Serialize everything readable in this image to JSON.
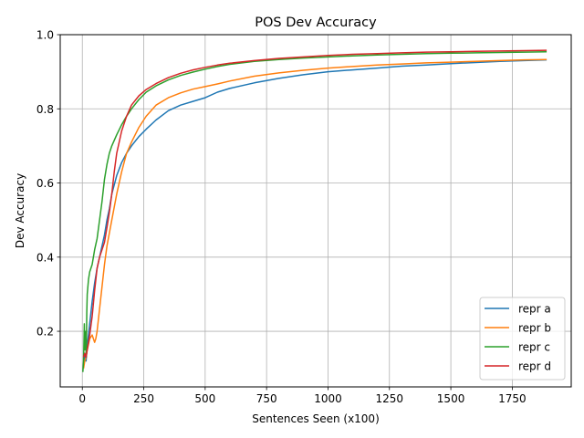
{
  "chart_data": {
    "type": "line",
    "title": "POS Dev Accuracy",
    "xlabel": "Sentences Seen (x100)",
    "ylabel": "Dev Accuracy",
    "xlim": [
      -90,
      1990
    ],
    "ylim": [
      0.05,
      1.0
    ],
    "xticks": [
      0,
      250,
      500,
      750,
      1000,
      1250,
      1500,
      1750
    ],
    "yticks": [
      0.2,
      0.4,
      0.6,
      0.8,
      1.0
    ],
    "xtick_labels": [
      "0",
      "250",
      "500",
      "750",
      "1000",
      "1250",
      "1500",
      "1750"
    ],
    "ytick_labels": [
      "0.2",
      "0.4",
      "0.6",
      "0.8",
      "1.0"
    ],
    "grid": true,
    "legend_position": "lower-right",
    "series": [
      {
        "name": "repr a",
        "color": "#1f77b4",
        "x": [
          5,
          10,
          15,
          20,
          30,
          40,
          50,
          60,
          70,
          80,
          90,
          100,
          110,
          120,
          140,
          160,
          180,
          200,
          230,
          260,
          300,
          350,
          400,
          450,
          500,
          550,
          600,
          700,
          800,
          900,
          1000,
          1100,
          1200,
          1300,
          1400,
          1500,
          1600,
          1700,
          1800,
          1890
        ],
        "y": [
          0.11,
          0.14,
          0.12,
          0.16,
          0.22,
          0.28,
          0.33,
          0.37,
          0.4,
          0.43,
          0.46,
          0.5,
          0.53,
          0.57,
          0.62,
          0.655,
          0.68,
          0.7,
          0.725,
          0.745,
          0.77,
          0.795,
          0.81,
          0.82,
          0.83,
          0.845,
          0.855,
          0.87,
          0.882,
          0.892,
          0.9,
          0.905,
          0.91,
          0.915,
          0.918,
          0.922,
          0.925,
          0.928,
          0.93,
          0.932
        ]
      },
      {
        "name": "repr b",
        "color": "#ff7f0e",
        "x": [
          5,
          10,
          15,
          20,
          30,
          40,
          50,
          55,
          60,
          70,
          80,
          90,
          100,
          120,
          140,
          160,
          180,
          200,
          230,
          260,
          300,
          350,
          400,
          450,
          500,
          550,
          600,
          700,
          800,
          900,
          1000,
          1100,
          1200,
          1300,
          1400,
          1500,
          1600,
          1700,
          1800,
          1890
        ],
        "y": [
          0.1,
          0.12,
          0.13,
          0.15,
          0.18,
          0.19,
          0.17,
          0.18,
          0.2,
          0.26,
          0.32,
          0.38,
          0.43,
          0.5,
          0.57,
          0.63,
          0.68,
          0.71,
          0.75,
          0.78,
          0.81,
          0.83,
          0.843,
          0.853,
          0.86,
          0.867,
          0.875,
          0.888,
          0.897,
          0.904,
          0.91,
          0.914,
          0.918,
          0.921,
          0.924,
          0.926,
          0.928,
          0.93,
          0.932,
          0.933
        ]
      },
      {
        "name": "repr c",
        "color": "#2ca02c",
        "x": [
          2,
          5,
          8,
          10,
          13,
          16,
          18,
          20,
          25,
          30,
          40,
          50,
          60,
          70,
          80,
          90,
          100,
          110,
          120,
          140,
          160,
          180,
          200,
          230,
          260,
          300,
          350,
          400,
          450,
          500,
          550,
          600,
          700,
          800,
          900,
          1000,
          1100,
          1200,
          1300,
          1400,
          1500,
          1600,
          1700,
          1800,
          1890
        ],
        "y": [
          0.09,
          0.12,
          0.22,
          0.15,
          0.2,
          0.13,
          0.25,
          0.3,
          0.34,
          0.36,
          0.38,
          0.42,
          0.45,
          0.5,
          0.55,
          0.61,
          0.65,
          0.68,
          0.7,
          0.73,
          0.757,
          0.78,
          0.8,
          0.825,
          0.845,
          0.862,
          0.878,
          0.89,
          0.899,
          0.907,
          0.914,
          0.92,
          0.928,
          0.933,
          0.937,
          0.94,
          0.943,
          0.945,
          0.947,
          0.949,
          0.95,
          0.951,
          0.952,
          0.953,
          0.954
        ]
      },
      {
        "name": "repr d",
        "color": "#d62728",
        "x": [
          5,
          10,
          15,
          20,
          25,
          30,
          40,
          50,
          60,
          70,
          80,
          90,
          100,
          110,
          120,
          130,
          140,
          160,
          180,
          200,
          230,
          260,
          300,
          350,
          400,
          450,
          500,
          550,
          600,
          700,
          800,
          900,
          1000,
          1100,
          1200,
          1300,
          1400,
          1500,
          1600,
          1700,
          1800,
          1890
        ],
        "y": [
          0.13,
          0.14,
          0.13,
          0.15,
          0.17,
          0.19,
          0.24,
          0.31,
          0.37,
          0.4,
          0.42,
          0.44,
          0.48,
          0.52,
          0.57,
          0.63,
          0.68,
          0.74,
          0.78,
          0.81,
          0.835,
          0.852,
          0.868,
          0.884,
          0.896,
          0.905,
          0.912,
          0.918,
          0.923,
          0.93,
          0.936,
          0.94,
          0.944,
          0.947,
          0.949,
          0.951,
          0.953,
          0.954,
          0.955,
          0.956,
          0.957,
          0.958
        ]
      }
    ]
  }
}
